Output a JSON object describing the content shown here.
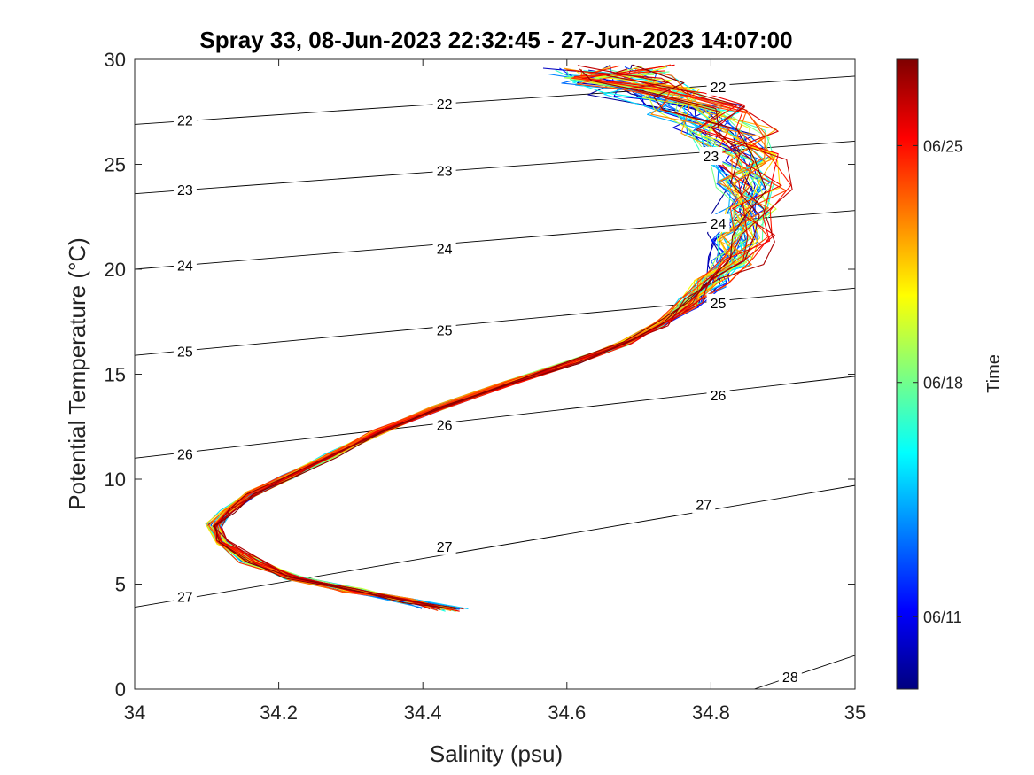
{
  "chart_data": {
    "type": "line",
    "title": "Spray 33, 08-Jun-2023 22:32:45 - 27-Jun-2023 14:07:00",
    "xlabel": "Salinity (psu)",
    "ylabel": "Potential Temperature (°C)",
    "xlim": [
      34,
      35
    ],
    "ylim": [
      0,
      30
    ],
    "x_ticks": [
      34,
      34.2,
      34.4,
      34.6,
      34.8,
      35
    ],
    "x_tick_labels": [
      "34",
      "34.2",
      "34.4",
      "34.6",
      "34.8",
      "35"
    ],
    "y_ticks": [
      0,
      5,
      10,
      15,
      20,
      25,
      30
    ],
    "y_tick_labels": [
      "0",
      "5",
      "10",
      "15",
      "20",
      "25",
      "30"
    ],
    "grid": false,
    "colorbar": {
      "label": "Time",
      "colormap": "jet",
      "ticks": [
        {
          "label": "06/11",
          "fraction": 0.115
        },
        {
          "label": "06/18",
          "fraction": 0.487
        },
        {
          "label": "06/25",
          "fraction": 0.863
        }
      ]
    },
    "density_contours": [
      {
        "label": "22",
        "points": [
          [
            34.0,
            26.9
          ],
          [
            35.0,
            29.2
          ]
        ],
        "label_positions": [
          [
            34.07,
            27.1
          ],
          [
            34.43,
            27.9
          ],
          [
            34.81,
            28.7
          ]
        ]
      },
      {
        "label": "23",
        "points": [
          [
            34.0,
            23.6
          ],
          [
            35.0,
            26.1
          ]
        ],
        "label_positions": [
          [
            34.07,
            23.8
          ],
          [
            34.43,
            24.7
          ],
          [
            34.8,
            25.4
          ]
        ]
      },
      {
        "label": "24",
        "points": [
          [
            34.0,
            20.0
          ],
          [
            35.0,
            22.8
          ]
        ],
        "label_positions": [
          [
            34.07,
            20.2
          ],
          [
            34.43,
            21.0
          ],
          [
            34.81,
            22.2
          ]
        ]
      },
      {
        "label": "25",
        "points": [
          [
            34.0,
            15.9
          ],
          [
            35.0,
            19.1
          ]
        ],
        "label_positions": [
          [
            34.07,
            16.1
          ],
          [
            34.43,
            17.1
          ],
          [
            34.81,
            18.4
          ]
        ]
      },
      {
        "label": "26",
        "points": [
          [
            34.0,
            11.0
          ],
          [
            35.0,
            14.9
          ]
        ],
        "label_positions": [
          [
            34.07,
            11.2
          ],
          [
            34.43,
            12.6
          ],
          [
            34.81,
            14.0
          ]
        ]
      },
      {
        "label": "27",
        "points": [
          [
            34.0,
            3.9
          ],
          [
            35.0,
            9.7
          ]
        ],
        "label_positions": [
          [
            34.07,
            4.4
          ],
          [
            34.43,
            6.8
          ],
          [
            34.79,
            8.8
          ]
        ]
      },
      {
        "label": "28",
        "points": [
          [
            34.86,
            0.0
          ],
          [
            35.0,
            1.6
          ]
        ],
        "label_positions": [
          [
            34.91,
            0.6
          ]
        ]
      }
    ],
    "series_base": {
      "name": "",
      "points": [
        [
          34.43,
          3.8
        ],
        [
          34.38,
          4.2
        ],
        [
          34.3,
          4.7
        ],
        [
          34.22,
          5.3
        ],
        [
          34.16,
          6.1
        ],
        [
          34.12,
          7.0
        ],
        [
          34.11,
          7.8
        ],
        [
          34.13,
          8.5
        ],
        [
          34.16,
          9.3
        ],
        [
          34.21,
          10.1
        ],
        [
          34.27,
          11.1
        ],
        [
          34.34,
          12.3
        ],
        [
          34.42,
          13.4
        ],
        [
          34.52,
          14.6
        ],
        [
          34.61,
          15.6
        ],
        [
          34.68,
          16.5
        ],
        [
          34.73,
          17.4
        ],
        [
          34.77,
          18.4
        ],
        [
          34.8,
          19.4
        ],
        [
          34.83,
          20.4
        ],
        [
          34.84,
          21.5
        ],
        [
          34.85,
          22.7
        ],
        [
          34.85,
          24.0
        ],
        [
          34.84,
          25.3
        ],
        [
          34.82,
          26.5
        ],
        [
          34.78,
          27.6
        ],
        [
          34.72,
          28.4
        ],
        [
          34.67,
          29.0
        ],
        [
          34.66,
          29.5
        ]
      ]
    },
    "profile_count": 48,
    "time_range": [
      "08-Jun-2023 22:32:45",
      "27-Jun-2023 14:07:00"
    ]
  }
}
